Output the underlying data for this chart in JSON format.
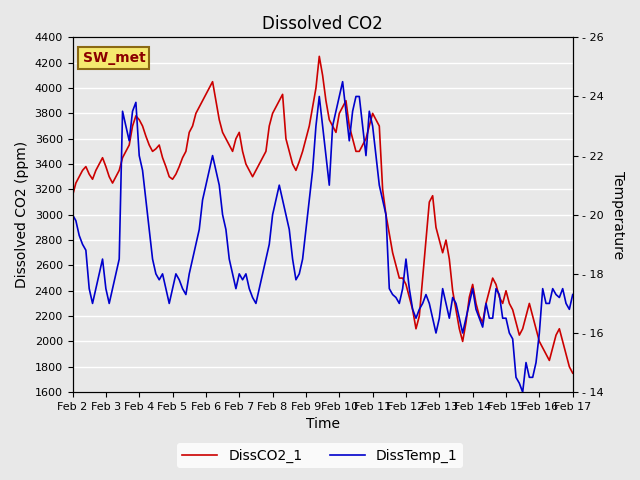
{
  "title": "Dissolved CO2",
  "xlabel": "Time",
  "ylabel_left": "Dissolved CO2 (ppm)",
  "ylabel_right": "Temperature",
  "legend_label1": "DissCO2_1",
  "legend_label2": "DissTemp_1",
  "station_label": "SW_met",
  "co2_ylim": [
    1600,
    4400
  ],
  "temp_ylim": [
    14,
    26
  ],
  "co2_yticks": [
    1600,
    1800,
    2000,
    2200,
    2400,
    2600,
    2800,
    3000,
    3200,
    3400,
    3600,
    3800,
    4000,
    4200,
    4400
  ],
  "temp_yticks": [
    14,
    16,
    18,
    20,
    22,
    24,
    26
  ],
  "xtick_labels": [
    "Feb 2",
    "Feb 3",
    "Feb 4",
    "Feb 5",
    "Feb 6",
    "Feb 7",
    "Feb 8",
    "Feb 9",
    "Feb 10",
    "Feb 11",
    "Feb 12",
    "Feb 13",
    "Feb 14",
    "Feb 15",
    "Feb 16",
    "Feb 17"
  ],
  "bg_color": "#e8e8e8",
  "plot_bg_color": "#e8e8e8",
  "line_color_co2": "#cc0000",
  "line_color_temp": "#0000cc",
  "grid_color": "#ffffff",
  "co2_data_x": [
    0,
    0.1,
    0.2,
    0.3,
    0.4,
    0.5,
    0.6,
    0.7,
    0.8,
    0.9,
    1.0,
    1.1,
    1.2,
    1.3,
    1.4,
    1.5,
    1.6,
    1.7,
    1.8,
    1.9,
    2.0,
    2.1,
    2.2,
    2.3,
    2.4,
    2.5,
    2.6,
    2.7,
    2.8,
    2.9,
    3.0,
    3.1,
    3.2,
    3.3,
    3.4,
    3.5,
    3.6,
    3.7,
    3.8,
    3.9,
    4.0,
    4.1,
    4.2,
    4.3,
    4.4,
    4.5,
    4.6,
    4.7,
    4.8,
    4.9,
    5.0,
    5.1,
    5.2,
    5.3,
    5.4,
    5.5,
    5.6,
    5.7,
    5.8,
    5.9,
    6.0,
    6.1,
    6.2,
    6.3,
    6.4,
    6.5,
    6.6,
    6.7,
    6.8,
    6.9,
    7.0,
    7.1,
    7.2,
    7.3,
    7.4,
    7.5,
    7.6,
    7.7,
    7.8,
    7.9,
    8.0,
    8.1,
    8.2,
    8.3,
    8.4,
    8.5,
    8.6,
    8.7,
    8.8,
    8.9,
    9.0,
    9.1,
    9.2,
    9.3,
    9.4,
    9.5,
    9.6,
    9.7,
    9.8,
    9.9,
    10.0,
    10.1,
    10.2,
    10.3,
    10.4,
    10.5,
    10.6,
    10.7,
    10.8,
    10.9,
    11.0,
    11.1,
    11.2,
    11.3,
    11.4,
    11.5,
    11.6,
    11.7,
    11.8,
    11.9,
    12.0,
    12.1,
    12.2,
    12.3,
    12.4,
    12.5,
    12.6,
    12.7,
    12.8,
    12.9,
    13.0,
    13.1,
    13.2,
    13.3,
    13.4,
    13.5,
    13.6,
    13.7,
    13.8,
    13.9,
    14.0,
    14.1,
    14.2,
    14.3,
    14.4,
    14.5,
    14.6,
    14.7,
    14.8,
    14.9,
    15.0
  ],
  "co2_data_y": [
    3150,
    3250,
    3300,
    3350,
    3380,
    3320,
    3280,
    3350,
    3400,
    3450,
    3380,
    3300,
    3250,
    3300,
    3350,
    3450,
    3500,
    3550,
    3700,
    3780,
    3750,
    3700,
    3620,
    3550,
    3500,
    3520,
    3550,
    3450,
    3380,
    3300,
    3280,
    3320,
    3380,
    3450,
    3500,
    3650,
    3700,
    3800,
    3850,
    3900,
    3950,
    4000,
    4050,
    3900,
    3750,
    3650,
    3600,
    3550,
    3500,
    3600,
    3650,
    3500,
    3400,
    3350,
    3300,
    3350,
    3400,
    3450,
    3500,
    3700,
    3800,
    3850,
    3900,
    3950,
    3600,
    3500,
    3400,
    3350,
    3420,
    3500,
    3600,
    3700,
    3850,
    4000,
    4250,
    4100,
    3900,
    3750,
    3700,
    3650,
    3800,
    3850,
    3900,
    3700,
    3600,
    3500,
    3500,
    3550,
    3600,
    3700,
    3800,
    3750,
    3700,
    3200,
    3000,
    2850,
    2700,
    2600,
    2500,
    2500,
    2450,
    2350,
    2250,
    2100,
    2200,
    2500,
    2800,
    3100,
    3150,
    2900,
    2800,
    2700,
    2800,
    2650,
    2400,
    2250,
    2100,
    2000,
    2150,
    2350,
    2450,
    2300,
    2200,
    2150,
    2300,
    2400,
    2500,
    2450,
    2350,
    2300,
    2400,
    2300,
    2250,
    2150,
    2050,
    2100,
    2200,
    2300,
    2200,
    2100,
    2000,
    1950,
    1900,
    1850,
    1950,
    2050,
    2100,
    2000,
    1900,
    1800,
    1750
  ],
  "temp_data_y": [
    20.0,
    19.8,
    19.3,
    19.0,
    18.8,
    17.5,
    17.0,
    17.5,
    18.0,
    18.5,
    17.5,
    17.0,
    17.5,
    18.0,
    18.5,
    23.5,
    23.0,
    22.5,
    23.5,
    23.8,
    22.0,
    21.5,
    20.5,
    19.5,
    18.5,
    18.0,
    17.8,
    18.0,
    17.5,
    17.0,
    17.5,
    18.0,
    17.8,
    17.5,
    17.3,
    18.0,
    18.5,
    19.0,
    19.5,
    20.5,
    21.0,
    21.5,
    22.0,
    21.5,
    21.0,
    20.0,
    19.5,
    18.5,
    18.0,
    17.5,
    18.0,
    17.8,
    18.0,
    17.5,
    17.2,
    17.0,
    17.5,
    18.0,
    18.5,
    19.0,
    20.0,
    20.5,
    21.0,
    20.5,
    20.0,
    19.5,
    18.5,
    17.8,
    18.0,
    18.5,
    19.5,
    20.5,
    21.5,
    23.0,
    24.0,
    23.0,
    22.0,
    21.0,
    23.0,
    23.5,
    24.0,
    24.5,
    23.5,
    22.5,
    23.5,
    24.0,
    24.0,
    23.0,
    22.0,
    23.5,
    23.0,
    22.0,
    21.0,
    20.5,
    20.0,
    17.5,
    17.3,
    17.2,
    17.0,
    17.5,
    18.5,
    17.5,
    16.8,
    16.5,
    16.8,
    17.0,
    17.3,
    17.0,
    16.5,
    16.0,
    16.5,
    17.5,
    17.0,
    16.5,
    17.2,
    17.0,
    16.5,
    16.0,
    16.5,
    17.0,
    17.5,
    16.8,
    16.5,
    16.2,
    17.0,
    16.5,
    16.5,
    17.5,
    17.3,
    16.5,
    16.5,
    16.0,
    15.8,
    14.5,
    14.3,
    14.0,
    15.0,
    14.5,
    14.5,
    15.0,
    16.0,
    17.5,
    17.0,
    17.0,
    17.5,
    17.3,
    17.2,
    17.5,
    17.0,
    16.8,
    17.3
  ]
}
